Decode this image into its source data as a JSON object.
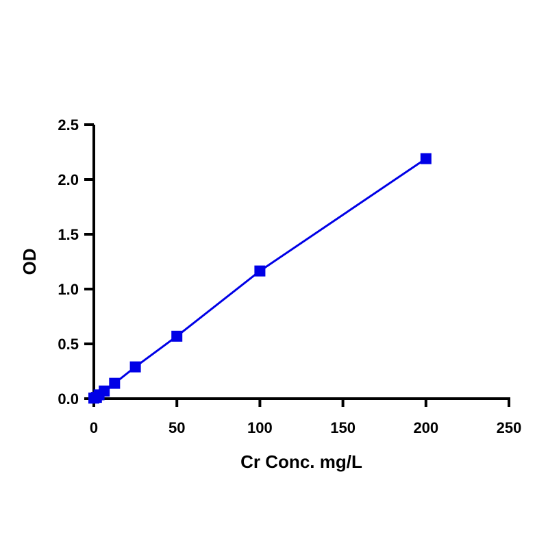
{
  "chart_data": {
    "type": "line",
    "title": "",
    "xlabel": "Cr Conc. mg/L",
    "ylabel": "OD",
    "xlim": [
      0,
      250
    ],
    "ylim": [
      0,
      2.5
    ],
    "x_ticks": [
      0,
      50,
      100,
      150,
      200,
      250
    ],
    "y_ticks": [
      0.0,
      0.5,
      1.0,
      1.5,
      2.0,
      2.5
    ],
    "x_tick_labels": [
      "0",
      "50",
      "100",
      "150",
      "200",
      "250"
    ],
    "y_tick_labels": [
      "0.0",
      "0.5",
      "1.0",
      "1.5",
      "2.0",
      "2.5"
    ],
    "grid": false,
    "legend": "none",
    "series": [
      {
        "color": "#0000e6",
        "marker": "square",
        "x": [
          0,
          1.5625,
          3.125,
          6.25,
          12.5,
          25,
          50,
          100,
          200
        ],
        "y": [
          0.005,
          0.012,
          0.035,
          0.07,
          0.14,
          0.29,
          0.57,
          1.165,
          2.19
        ]
      }
    ]
  }
}
